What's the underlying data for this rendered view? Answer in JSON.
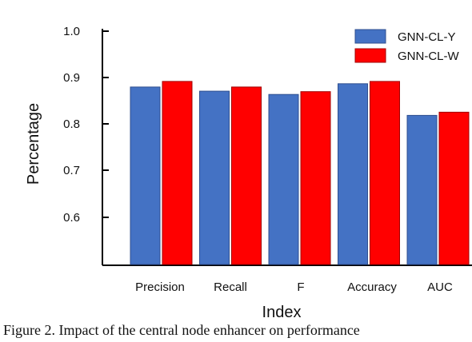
{
  "chart_data": {
    "type": "bar",
    "title": "",
    "xlabel": "Index",
    "ylabel": "Percentage",
    "categories": [
      "Precision",
      "Recall",
      "F",
      "Accuracy",
      "AUC"
    ],
    "series": [
      {
        "name": "GNN-CL-Y",
        "color": "#4472c4",
        "values": [
          0.88,
          0.871,
          0.864,
          0.887,
          0.819
        ]
      },
      {
        "name": "GNN-CL-W",
        "color": "#ff0000",
        "values": [
          0.892,
          0.88,
          0.87,
          0.892,
          0.826
        ]
      }
    ],
    "ylim": [
      0.5,
      1.0
    ],
    "yticks": [
      "1.0",
      "0.9",
      "0.8",
      "0.7",
      "0.6"
    ],
    "grid": false,
    "legend_position": "top-right"
  },
  "caption": "Figure 2. Impact of the central node enhancer on performance"
}
